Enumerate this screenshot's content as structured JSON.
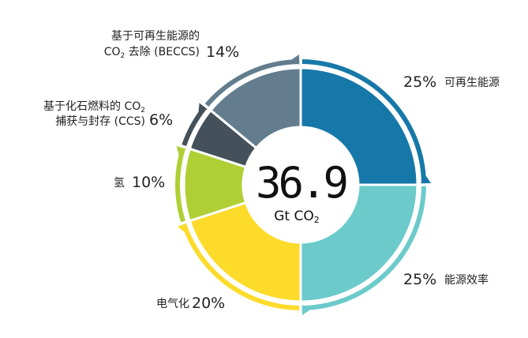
{
  "chart_data": {
    "type": "pie",
    "variant": "donut",
    "center_value": "36.9",
    "center_unit_main": "Gt CO",
    "center_unit_sub": "2",
    "order": "clockwise from top",
    "slices": [
      {
        "label": "可再生能源",
        "value": 25,
        "pct_text": "25%",
        "color": "#1678a8"
      },
      {
        "label": "能源效率",
        "value": 25,
        "pct_text": "25%",
        "color": "#6ccacb"
      },
      {
        "label": "电气化",
        "value": 20,
        "pct_text": "20%",
        "color": "#fddb2b"
      },
      {
        "label": "氢",
        "value": 10,
        "pct_text": "10%",
        "color": "#afcf35"
      },
      {
        "label_line1": "基于化石燃料的 CO",
        "label_line1_sub": "2",
        "label_line2": "捕获与封存 (CCS)",
        "value": 6,
        "pct_text": "6%",
        "color": "#44505a"
      },
      {
        "label_line1": "基于可再生能源的",
        "label_line2_pre": "CO",
        "label_line2_sub": "2",
        "label_line2_post": " 去除 (BECCS)",
        "value": 14,
        "pct_text": "14%",
        "color": "#637d8e"
      }
    ]
  }
}
